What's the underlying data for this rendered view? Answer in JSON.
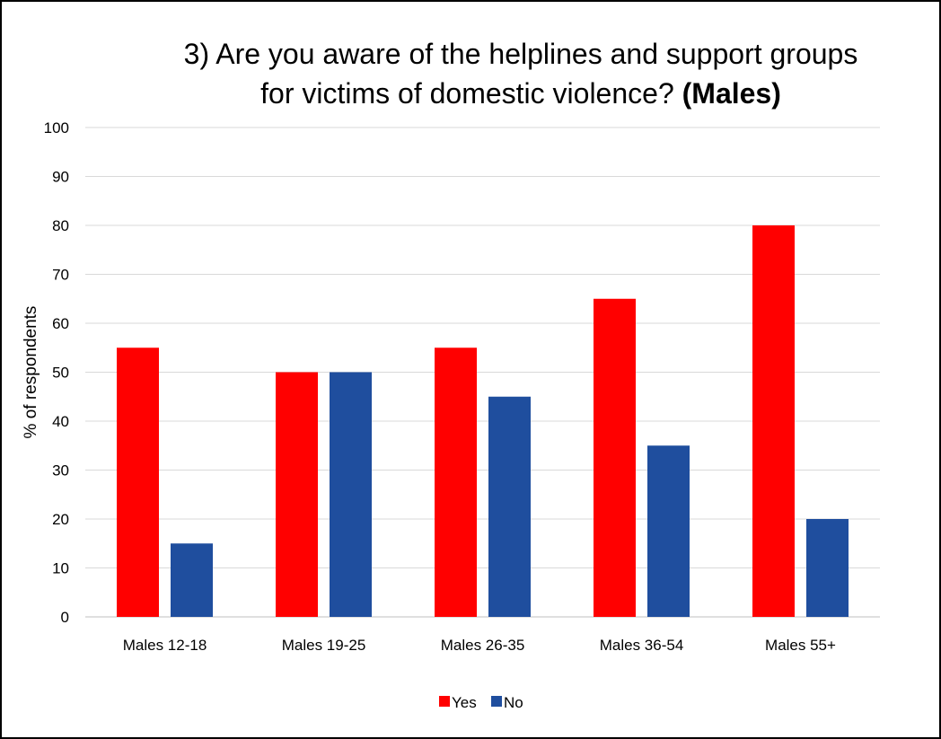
{
  "chart_data": {
    "type": "bar",
    "title_line1": "3) Are you aware of the helplines and support groups",
    "title_line2": "for victims of domestic violence?",
    "title_bold": "(Males)",
    "xlabel": "",
    "ylabel": "% of respondents",
    "ylim": [
      0,
      100
    ],
    "yticks": [
      0,
      10,
      20,
      30,
      40,
      50,
      60,
      70,
      80,
      90,
      100
    ],
    "categories": [
      "Males 12-18",
      "Males 19-25",
      "Males 26-35",
      "Males 36-54",
      "Males 55+"
    ],
    "series": [
      {
        "name": "Yes",
        "color": "#ff0000",
        "values": [
          55,
          50,
          55,
          65,
          80
        ]
      },
      {
        "name": "No",
        "color": "#1f4e9e",
        "values": [
          15,
          50,
          45,
          35,
          20
        ]
      }
    ],
    "grid": true,
    "legend_position": "bottom"
  }
}
